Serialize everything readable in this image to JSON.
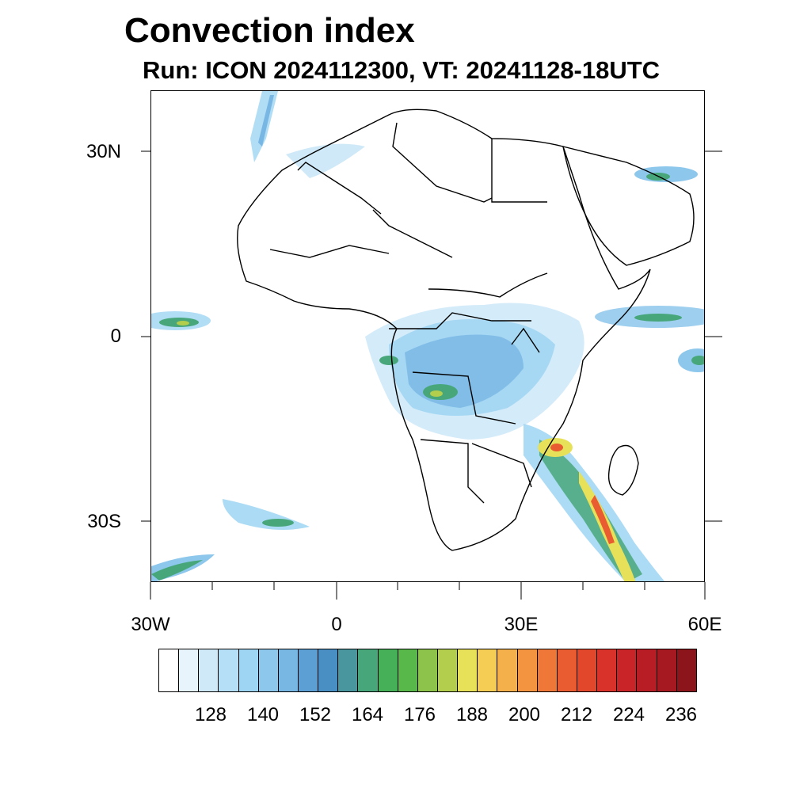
{
  "title": "Convection index",
  "subtitle": "Run: ICON 2024112300,  VT: 20241128-18UTC",
  "axes": {
    "lat_labels": [
      "30N",
      "0",
      "30S"
    ],
    "lon_labels": [
      "30W",
      "0",
      "30E",
      "60E"
    ],
    "lon_range": [
      "30W",
      "60E"
    ],
    "lat_range": [
      "40N",
      "40S"
    ]
  },
  "colorbar": {
    "labels": [
      "128",
      "140",
      "152",
      "164",
      "176",
      "188",
      "200",
      "212",
      "224",
      "236"
    ],
    "colors": [
      "#ffffff",
      "#e8f4fb",
      "#cfe9f8",
      "#b5dff6",
      "#9dd5f3",
      "#8dc7ec",
      "#78b6e4",
      "#5c9fd5",
      "#4a8fc4",
      "#49969f",
      "#48a77a",
      "#45b058",
      "#58b94a",
      "#8dc24b",
      "#b3cd4d",
      "#e6e159",
      "#f5cd55",
      "#f4b04a",
      "#f39540",
      "#ef7838",
      "#e95b30",
      "#e2472c",
      "#d8322b",
      "#c92528",
      "#b81d25",
      "#a61921",
      "#8c151c"
    ]
  },
  "colors": {
    "coast": "#000000",
    "background": "#ffffff"
  }
}
